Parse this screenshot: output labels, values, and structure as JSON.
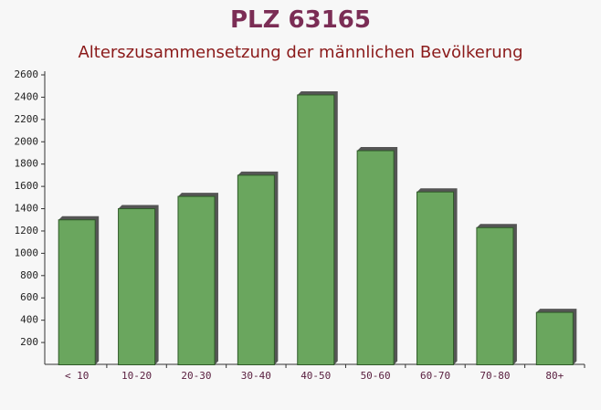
{
  "chart_data": {
    "type": "bar",
    "title": "PLZ 63165",
    "subtitle": "Alterszusammensetzung der männlichen Bevölkerung",
    "categories": [
      "< 10",
      "10-20",
      "20-30",
      "30-40",
      "40-50",
      "50-60",
      "60-70",
      "70-80",
      "80+"
    ],
    "values": [
      1300,
      1400,
      1510,
      1700,
      2420,
      1920,
      1550,
      1230,
      470
    ],
    "color": "#6aa65e",
    "ylim": [
      0,
      2600
    ],
    "yticks": [
      200,
      400,
      600,
      800,
      1000,
      1200,
      1400,
      1600,
      1800,
      2000,
      2200,
      2400,
      2600
    ]
  }
}
